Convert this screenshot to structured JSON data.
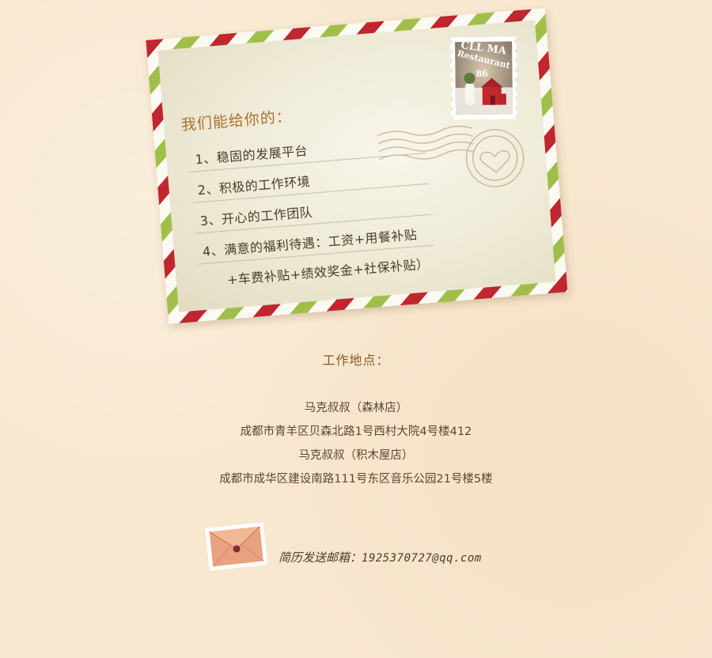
{
  "benefits": {
    "title": "我们能给你的：",
    "items": [
      "1、稳固的发展平台",
      "2、积极的工作环境",
      "3、开心的工作团队",
      "4、满意的福利待遇：工资+用餐补贴",
      "+车费补贴+绩效奖金+社保补贴）"
    ]
  },
  "stamp": {
    "text_top": "CLL MA",
    "text_sub": "Restaurant",
    "number": "86"
  },
  "location": {
    "title": "工作地点：",
    "lines": [
      "马克叔叔（森林店）",
      "成都市青羊区贝森北路1号西村大院4号楼412",
      "马克叔叔（积木屋店）",
      "成都市成华区建设南路111号东区音乐公园21号楼5楼"
    ]
  },
  "contact": {
    "label": "简历发送邮箱：",
    "email": "1925370727@qq.com"
  },
  "colors": {
    "background": "#f8e8d0",
    "stripe_red": "#c0262d",
    "stripe_green": "#9fbf4a",
    "accent": "#a9702e"
  }
}
